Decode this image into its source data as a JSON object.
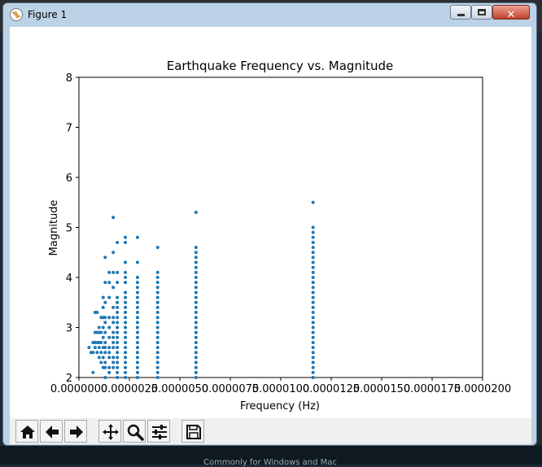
{
  "window": {
    "title": "Figure 1",
    "close_glyph": "✕"
  },
  "background": {
    "taskbar_text": "Commonly for Windows and Mac"
  },
  "toolbar": {
    "buttons": [
      {
        "icon": "home-icon"
      },
      {
        "icon": "back-arrow-icon"
      },
      {
        "icon": "forward-arrow-icon"
      },
      {
        "icon": "pan-icon"
      },
      {
        "icon": "zoom-icon"
      },
      {
        "icon": "subplots-icon"
      },
      {
        "icon": "save-icon"
      }
    ]
  },
  "colors": {
    "point": "#1f77b4",
    "axes": "#000000",
    "close_button": "#c4412b"
  },
  "chart_data": {
    "type": "scatter",
    "title": "Earthquake Frequency vs. Magnitude",
    "xlabel": "Frequency (Hz)",
    "ylabel": "Magnitude",
    "xlim": [
      0,
      2e-05
    ],
    "ylim": [
      2,
      8
    ],
    "xticks": [
      0,
      2.5e-06,
      5e-06,
      7.5e-06,
      1e-05,
      1.25e-05,
      1.5e-05,
      1.75e-05,
      2e-05
    ],
    "xtick_labels": [
      "0.0000000",
      "0.0000025",
      "0.0000050",
      "0.0000075",
      "0.0000100",
      "0.0000125",
      "0.0000150",
      "0.0000175",
      "0.0000200"
    ],
    "yticks": [
      2,
      3,
      4,
      5,
      6,
      7,
      8
    ],
    "ytick_labels": [
      "2",
      "3",
      "4",
      "5",
      "6",
      "7",
      "8"
    ],
    "grid": false,
    "columns": [
      {
        "x": 1.16e-05,
        "ymin": 2.0,
        "ymax": 5.0,
        "step": 0.1
      },
      {
        "x": 5.8e-06,
        "ymin": 2.0,
        "ymax": 4.6,
        "step": 0.1
      },
      {
        "x": 3.9e-06,
        "ymin": 2.0,
        "ymax": 4.1,
        "step": 0.1
      },
      {
        "x": 2.9e-06,
        "ymin": 2.0,
        "ymax": 4.0,
        "step": 0.1
      },
      {
        "x": 2.3e-06,
        "ymin": 2.0,
        "ymax": 3.7,
        "step": 0.1
      },
      {
        "x": 1.9e-06,
        "ymin": 2.0,
        "ymax": 3.2,
        "step": 0.1
      }
    ],
    "points": [
      [
        1.16e-05,
        5.5
      ],
      [
        5.8e-06,
        5.3
      ],
      [
        3.9e-06,
        4.6
      ],
      [
        2.9e-06,
        4.8
      ],
      [
        2.9e-06,
        4.3
      ],
      [
        2.3e-06,
        4.8
      ],
      [
        2.3e-06,
        4.7
      ],
      [
        2.3e-06,
        4.3
      ],
      [
        2.3e-06,
        4.1
      ],
      [
        2.3e-06,
        4.0
      ],
      [
        2.3e-06,
        3.9
      ],
      [
        1.9e-06,
        4.7
      ],
      [
        1.9e-06,
        4.1
      ],
      [
        1.9e-06,
        3.9
      ],
      [
        1.9e-06,
        3.6
      ],
      [
        1.9e-06,
        3.5
      ],
      [
        1.9e-06,
        3.4
      ],
      [
        1.9e-06,
        3.3
      ],
      [
        1.7e-06,
        5.2
      ],
      [
        1.7e-06,
        4.5
      ],
      [
        1.7e-06,
        4.1
      ],
      [
        1.7e-06,
        3.8
      ],
      [
        1.7e-06,
        3.4
      ],
      [
        1.7e-06,
        3.2
      ],
      [
        1.7e-06,
        3.1
      ],
      [
        1.7e-06,
        2.9
      ],
      [
        1.7e-06,
        2.8
      ],
      [
        1.7e-06,
        2.7
      ],
      [
        1.7e-06,
        2.6
      ],
      [
        1.7e-06,
        2.4
      ],
      [
        1.7e-06,
        2.3
      ],
      [
        1.7e-06,
        2.2
      ],
      [
        1.5e-06,
        4.1
      ],
      [
        1.5e-06,
        3.9
      ],
      [
        1.5e-06,
        3.6
      ],
      [
        1.5e-06,
        3.2
      ],
      [
        1.5e-06,
        3.0
      ],
      [
        1.5e-06,
        2.8
      ],
      [
        1.5e-06,
        2.6
      ],
      [
        1.5e-06,
        2.5
      ],
      [
        1.5e-06,
        2.4
      ],
      [
        1.5e-06,
        2.2
      ],
      [
        1.5e-06,
        2.1
      ],
      [
        1.3e-06,
        4.4
      ],
      [
        1.3e-06,
        3.9
      ],
      [
        1.3e-06,
        3.5
      ],
      [
        1.3e-06,
        3.2
      ],
      [
        1.3e-06,
        3.1
      ],
      [
        1.3e-06,
        2.9
      ],
      [
        1.3e-06,
        2.7
      ],
      [
        1.3e-06,
        2.6
      ],
      [
        1.3e-06,
        2.5
      ],
      [
        1.3e-06,
        2.3
      ],
      [
        1.3e-06,
        2.2
      ],
      [
        1.3e-06,
        2.0
      ],
      [
        1.2e-06,
        3.6
      ],
      [
        1.2e-06,
        3.4
      ],
      [
        1.2e-06,
        3.2
      ],
      [
        1.2e-06,
        3.0
      ],
      [
        1.2e-06,
        2.8
      ],
      [
        1.2e-06,
        2.6
      ],
      [
        1.2e-06,
        2.4
      ],
      [
        1.2e-06,
        2.2
      ],
      [
        1.1e-06,
        3.2
      ],
      [
        1.1e-06,
        2.9
      ],
      [
        1.1e-06,
        2.7
      ],
      [
        1.1e-06,
        2.5
      ],
      [
        1.1e-06,
        2.3
      ],
      [
        1e-06,
        3.0
      ],
      [
        1e-06,
        2.9
      ],
      [
        1e-06,
        2.7
      ],
      [
        1e-06,
        2.6
      ],
      [
        1e-06,
        2.4
      ],
      [
        9e-07,
        3.3
      ],
      [
        9e-07,
        2.9
      ],
      [
        9e-07,
        2.7
      ],
      [
        9e-07,
        2.5
      ],
      [
        8e-07,
        3.3
      ],
      [
        8e-07,
        2.9
      ],
      [
        8e-07,
        2.7
      ],
      [
        8e-07,
        2.6
      ],
      [
        7e-07,
        2.7
      ],
      [
        7e-07,
        2.5
      ],
      [
        7e-07,
        2.1
      ],
      [
        6e-07,
        2.5
      ],
      [
        5e-07,
        2.6
      ]
    ]
  }
}
